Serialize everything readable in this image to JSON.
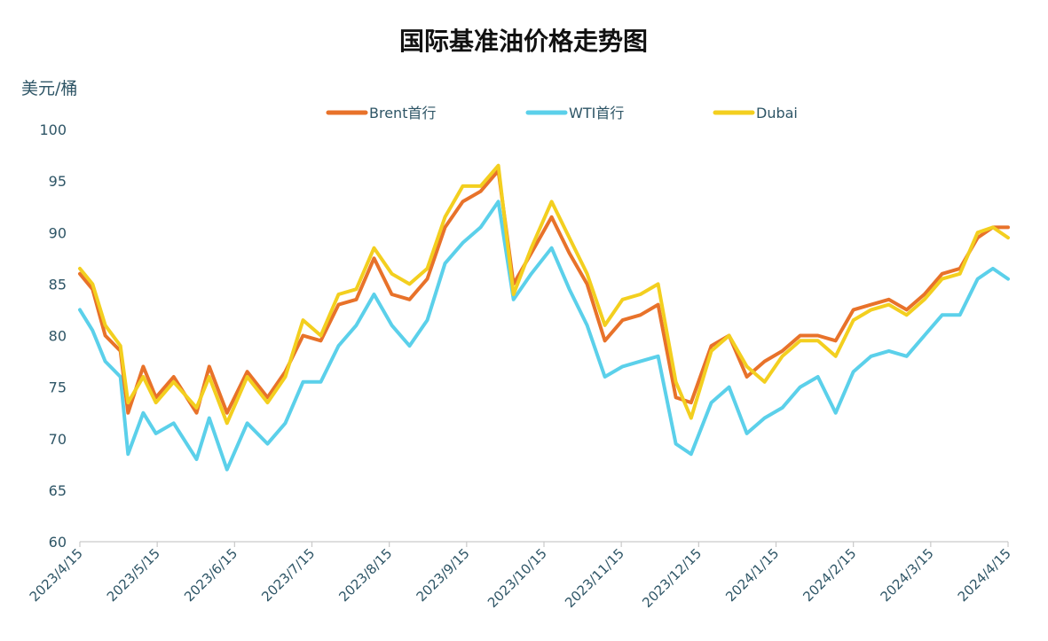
{
  "chart_data": {
    "type": "line",
    "title": "国际基准油价格走势图",
    "ylabel": "美元/桶",
    "xlabel": "",
    "ylim": [
      60,
      100
    ],
    "yticks": [
      60,
      65,
      70,
      75,
      80,
      85,
      90,
      95,
      100
    ],
    "x_range": [
      "2023-04-15",
      "2024-04-15"
    ],
    "x_tick_labels": [
      "2023/4/15",
      "2023/5/15",
      "2023/6/15",
      "2023/7/15",
      "2023/8/15",
      "2023/9/15",
      "2023/10/15",
      "2023/11/15",
      "2023/12/15",
      "2024/1/15",
      "2024/2/15",
      "2024/3/15",
      "2024/4/15"
    ],
    "grid": false,
    "legend_position": "top",
    "series": [
      {
        "name": "Brent首行",
        "color": "#e8722a",
        "points": [
          [
            "2023-04-15",
            86
          ],
          [
            "2023-04-20",
            84.5
          ],
          [
            "2023-04-25",
            80
          ],
          [
            "2023-05-01",
            78.5
          ],
          [
            "2023-05-04",
            72.5
          ],
          [
            "2023-05-10",
            77
          ],
          [
            "2023-05-15",
            74
          ],
          [
            "2023-05-22",
            76
          ],
          [
            "2023-05-31",
            72.5
          ],
          [
            "2023-06-05",
            77
          ],
          [
            "2023-06-12",
            72.5
          ],
          [
            "2023-06-20",
            76.5
          ],
          [
            "2023-06-28",
            74
          ],
          [
            "2023-07-05",
            76.5
          ],
          [
            "2023-07-12",
            80
          ],
          [
            "2023-07-19",
            79.5
          ],
          [
            "2023-07-26",
            83
          ],
          [
            "2023-08-02",
            83.5
          ],
          [
            "2023-08-09",
            87.5
          ],
          [
            "2023-08-16",
            84
          ],
          [
            "2023-08-23",
            83.5
          ],
          [
            "2023-08-30",
            85.5
          ],
          [
            "2023-09-06",
            90.5
          ],
          [
            "2023-09-13",
            93
          ],
          [
            "2023-09-20",
            94
          ],
          [
            "2023-09-27",
            96
          ],
          [
            "2023-10-03",
            85
          ],
          [
            "2023-10-10",
            88
          ],
          [
            "2023-10-18",
            91.5
          ],
          [
            "2023-10-25",
            88
          ],
          [
            "2023-11-01",
            85
          ],
          [
            "2023-11-08",
            79.5
          ],
          [
            "2023-11-15",
            81.5
          ],
          [
            "2023-11-22",
            82
          ],
          [
            "2023-11-29",
            83
          ],
          [
            "2023-12-06",
            74
          ],
          [
            "2023-12-12",
            73.5
          ],
          [
            "2023-12-20",
            79
          ],
          [
            "2023-12-27",
            80
          ],
          [
            "2024-01-03",
            76
          ],
          [
            "2024-01-10",
            77.5
          ],
          [
            "2024-01-17",
            78.5
          ],
          [
            "2024-01-24",
            80
          ],
          [
            "2024-01-31",
            80
          ],
          [
            "2024-02-07",
            79.5
          ],
          [
            "2024-02-14",
            82.5
          ],
          [
            "2024-02-21",
            83
          ],
          [
            "2024-02-28",
            83.5
          ],
          [
            "2024-03-06",
            82.5
          ],
          [
            "2024-03-13",
            84
          ],
          [
            "2024-03-20",
            86
          ],
          [
            "2024-03-27",
            86.5
          ],
          [
            "2024-04-03",
            89.5
          ],
          [
            "2024-04-09",
            90.5
          ],
          [
            "2024-04-15",
            90.5
          ]
        ]
      },
      {
        "name": "WTI首行",
        "color": "#5bd0ea",
        "points": [
          [
            "2023-04-15",
            82.5
          ],
          [
            "2023-04-20",
            80.5
          ],
          [
            "2023-04-25",
            77.5
          ],
          [
            "2023-05-01",
            76
          ],
          [
            "2023-05-04",
            68.5
          ],
          [
            "2023-05-10",
            72.5
          ],
          [
            "2023-05-15",
            70.5
          ],
          [
            "2023-05-22",
            71.5
          ],
          [
            "2023-05-31",
            68
          ],
          [
            "2023-06-05",
            72
          ],
          [
            "2023-06-12",
            67
          ],
          [
            "2023-06-20",
            71.5
          ],
          [
            "2023-06-28",
            69.5
          ],
          [
            "2023-07-05",
            71.5
          ],
          [
            "2023-07-12",
            75.5
          ],
          [
            "2023-07-19",
            75.5
          ],
          [
            "2023-07-26",
            79
          ],
          [
            "2023-08-02",
            81
          ],
          [
            "2023-08-09",
            84
          ],
          [
            "2023-08-16",
            81
          ],
          [
            "2023-08-23",
            79
          ],
          [
            "2023-08-30",
            81.5
          ],
          [
            "2023-09-06",
            87
          ],
          [
            "2023-09-13",
            89
          ],
          [
            "2023-09-20",
            90.5
          ],
          [
            "2023-09-27",
            93
          ],
          [
            "2023-10-03",
            83.5
          ],
          [
            "2023-10-10",
            86
          ],
          [
            "2023-10-18",
            88.5
          ],
          [
            "2023-10-25",
            84.5
          ],
          [
            "2023-11-01",
            81
          ],
          [
            "2023-11-08",
            76
          ],
          [
            "2023-11-15",
            77
          ],
          [
            "2023-11-22",
            77.5
          ],
          [
            "2023-11-29",
            78
          ],
          [
            "2023-12-06",
            69.5
          ],
          [
            "2023-12-12",
            68.5
          ],
          [
            "2023-12-20",
            73.5
          ],
          [
            "2023-12-27",
            75
          ],
          [
            "2024-01-03",
            70.5
          ],
          [
            "2024-01-10",
            72
          ],
          [
            "2024-01-17",
            73
          ],
          [
            "2024-01-24",
            75
          ],
          [
            "2024-01-31",
            76
          ],
          [
            "2024-02-07",
            72.5
          ],
          [
            "2024-02-14",
            76.5
          ],
          [
            "2024-02-21",
            78
          ],
          [
            "2024-02-28",
            78.5
          ],
          [
            "2024-03-06",
            78
          ],
          [
            "2024-03-13",
            80
          ],
          [
            "2024-03-20",
            82
          ],
          [
            "2024-03-27",
            82
          ],
          [
            "2024-04-03",
            85.5
          ],
          [
            "2024-04-09",
            86.5
          ],
          [
            "2024-04-15",
            85.5
          ]
        ]
      },
      {
        "name": "Dubai",
        "color": "#f3cf1f",
        "points": [
          [
            "2023-04-15",
            86.5
          ],
          [
            "2023-04-20",
            85
          ],
          [
            "2023-04-25",
            81
          ],
          [
            "2023-05-01",
            79
          ],
          [
            "2023-05-04",
            73.5
          ],
          [
            "2023-05-10",
            76
          ],
          [
            "2023-05-15",
            73.5
          ],
          [
            "2023-05-22",
            75.5
          ],
          [
            "2023-05-31",
            73
          ],
          [
            "2023-06-05",
            76
          ],
          [
            "2023-06-12",
            71.5
          ],
          [
            "2023-06-20",
            76
          ],
          [
            "2023-06-28",
            73.5
          ],
          [
            "2023-07-05",
            76
          ],
          [
            "2023-07-12",
            81.5
          ],
          [
            "2023-07-19",
            80
          ],
          [
            "2023-07-26",
            84
          ],
          [
            "2023-08-02",
            84.5
          ],
          [
            "2023-08-09",
            88.5
          ],
          [
            "2023-08-16",
            86
          ],
          [
            "2023-08-23",
            85
          ],
          [
            "2023-08-30",
            86.5
          ],
          [
            "2023-09-06",
            91.5
          ],
          [
            "2023-09-13",
            94.5
          ],
          [
            "2023-09-20",
            94.5
          ],
          [
            "2023-09-27",
            96.5
          ],
          [
            "2023-10-03",
            84
          ],
          [
            "2023-10-10",
            88.5
          ],
          [
            "2023-10-18",
            93
          ],
          [
            "2023-10-25",
            89.5
          ],
          [
            "2023-11-01",
            86
          ],
          [
            "2023-11-08",
            81
          ],
          [
            "2023-11-15",
            83.5
          ],
          [
            "2023-11-22",
            84
          ],
          [
            "2023-11-29",
            85
          ],
          [
            "2023-12-06",
            75.5
          ],
          [
            "2023-12-12",
            72
          ],
          [
            "2023-12-20",
            78.5
          ],
          [
            "2023-12-27",
            80
          ],
          [
            "2024-01-03",
            77
          ],
          [
            "2024-01-10",
            75.5
          ],
          [
            "2024-01-17",
            78
          ],
          [
            "2024-01-24",
            79.5
          ],
          [
            "2024-01-31",
            79.5
          ],
          [
            "2024-02-07",
            78
          ],
          [
            "2024-02-14",
            81.5
          ],
          [
            "2024-02-21",
            82.5
          ],
          [
            "2024-02-28",
            83
          ],
          [
            "2024-03-06",
            82
          ],
          [
            "2024-03-13",
            83.5
          ],
          [
            "2024-03-20",
            85.5
          ],
          [
            "2024-03-27",
            86
          ],
          [
            "2024-04-03",
            90
          ],
          [
            "2024-04-09",
            90.5
          ],
          [
            "2024-04-15",
            89.5
          ]
        ]
      }
    ]
  }
}
